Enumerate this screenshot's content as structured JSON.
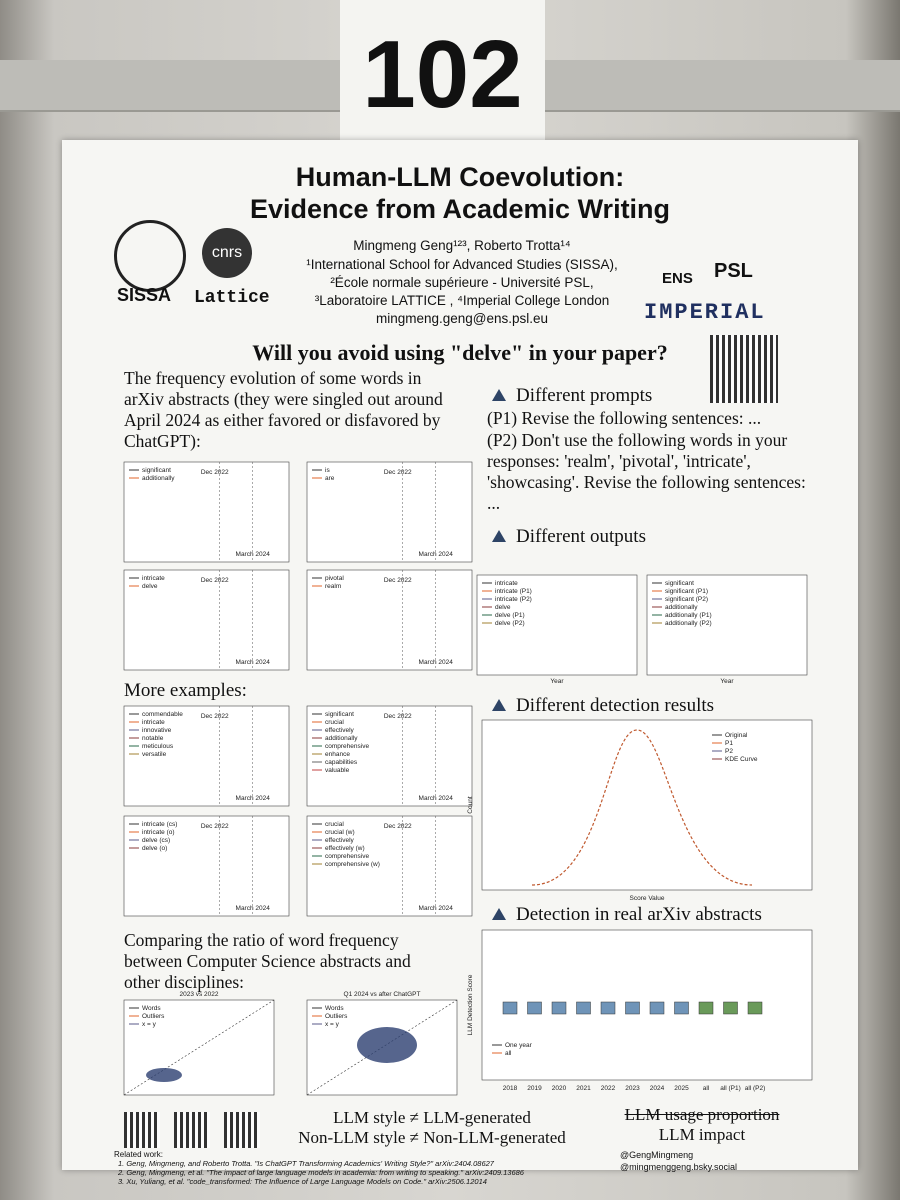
{
  "sign": "102",
  "header": {
    "title_line1": "Human-LLM Coevolution:",
    "title_line2": "Evidence from Academic Writing",
    "authors": "Mingmeng Geng¹²³, Roberto Trotta¹⁴",
    "affiliations": [
      "¹International School for Advanced Studies (SISSA),",
      "²École normale supérieure - Université PSL,",
      "³Laboratoire LATTICE , ⁴Imperial College London"
    ],
    "email": "mingmeng.geng@ens.psl.eu",
    "logos": [
      "SISSA",
      "cnrs",
      "Lattice",
      "ENS",
      "PSL",
      "IMPERIAL"
    ]
  },
  "question": "Will you avoid using \"delve\" in your paper?",
  "left": {
    "intro": "The frequency evolution of some words in arXiv abstracts (they were singled out around April 2024 as either favored or disfavored by ChatGPT):",
    "panels": [
      {
        "legend": [
          "significant",
          "additionally"
        ],
        "notes": [
          "Dec 2022",
          "March 2024"
        ]
      },
      {
        "legend": [
          "is",
          "are"
        ],
        "notes": [
          "Dec 2022",
          "March 2024"
        ]
      },
      {
        "legend": [
          "intricate",
          "delve"
        ],
        "notes": [
          "Dec 2022",
          "March 2024"
        ]
      },
      {
        "legend": [
          "pivotal",
          "realm"
        ],
        "notes": [
          "Dec 2022",
          "March 2024"
        ]
      }
    ],
    "more_examples": "More examples:",
    "more_panels": [
      {
        "legend": [
          "commendable",
          "intricate",
          "innovative",
          "notable",
          "meticulous",
          "versatile"
        ],
        "notes": [
          "Dec 2022",
          "March 2024"
        ]
      },
      {
        "legend": [
          "significant",
          "crucial",
          "effectively",
          "additionally",
          "comprehensive",
          "enhance",
          "capabilities",
          "valuable"
        ],
        "notes": [
          "Dec 2022",
          "March 2024"
        ]
      },
      {
        "legend": [
          "intricate (cs)",
          "intricate (o)",
          "delve (cs)",
          "delve (o)"
        ],
        "notes": [
          "Dec 2022",
          "March 2024"
        ]
      },
      {
        "legend": [
          "crucial",
          "crucial (w)",
          "effectively",
          "effectively (w)",
          "comprehensive",
          "comprehensive (w)"
        ],
        "notes": [
          "Dec 2022",
          "March 2024"
        ]
      }
    ],
    "comparing": "Comparing the ratio of word frequency between Computer Science abstracts and other disciplines:",
    "scatter_panels": [
      {
        "title": "2023 vs 2022",
        "legend": [
          "Words",
          "Outliers",
          "x = y"
        ]
      },
      {
        "title": "Q1 2024 vs after ChatGPT",
        "legend": [
          "Words",
          "Outliers",
          "x = y"
        ]
      }
    ]
  },
  "right": {
    "prompts_heading": "Different prompts",
    "prompts": [
      "(P1) Revise the following sentences: ...",
      "(P2) Don't use the following words in your responses: 'realm', 'pivotal', 'intricate', 'showcasing'. Revise the following sentences: ..."
    ],
    "outputs_heading": "Different outputs",
    "output_panels": [
      {
        "legend": [
          "intricate",
          "intricate (P1)",
          "intricate (P2)",
          "delve",
          "delve (P1)",
          "delve (P2)"
        ],
        "xlabel": "Year"
      },
      {
        "legend": [
          "significant",
          "significant (P1)",
          "significant (P2)",
          "additionally",
          "additionally (P1)",
          "additionally (P2)"
        ],
        "xlabel": "Year"
      }
    ],
    "detection_heading": "Different detection results",
    "detection_legend": [
      "Original",
      "P1",
      "P2",
      "KDE Curve"
    ],
    "detection_xlabel": "Score Value",
    "detection_ylabel": "Count",
    "real_heading": "Detection in real arXiv abstracts",
    "real_ylabel": "LLM Detection Score",
    "real_categories": [
      "2018",
      "2019",
      "2020",
      "2021",
      "2022",
      "2023",
      "2024",
      "2025",
      "all",
      "all (P1)",
      "all (P2)"
    ],
    "real_legend": [
      "One year",
      "all"
    ]
  },
  "bottom": {
    "line1": "LLM style ≠ LLM-generated",
    "line2": "Non-LLM style ≠ Non-LLM-generated",
    "struck": "LLM usage proportion",
    "impact": "LLM impact"
  },
  "references": {
    "heading": "Related work:",
    "items": [
      "1. Geng, Mingmeng, and Roberto Trotta. \"Is ChatGPT Transforming Academics' Writing Style?\" arXiv:2404.08627",
      "2. Geng, Mingmeng, et al. \"The impact of large language models in academia: from writing to speaking.\" arXiv:2409.13686",
      "3. Xu, Yuliang, et al. \"code_transformed: The Influence of Large Language Models on Code.\" arXiv:2506.12014"
    ]
  },
  "social": [
    "@GengMingmeng",
    "@mingmenggeng.bsky.social"
  ]
}
